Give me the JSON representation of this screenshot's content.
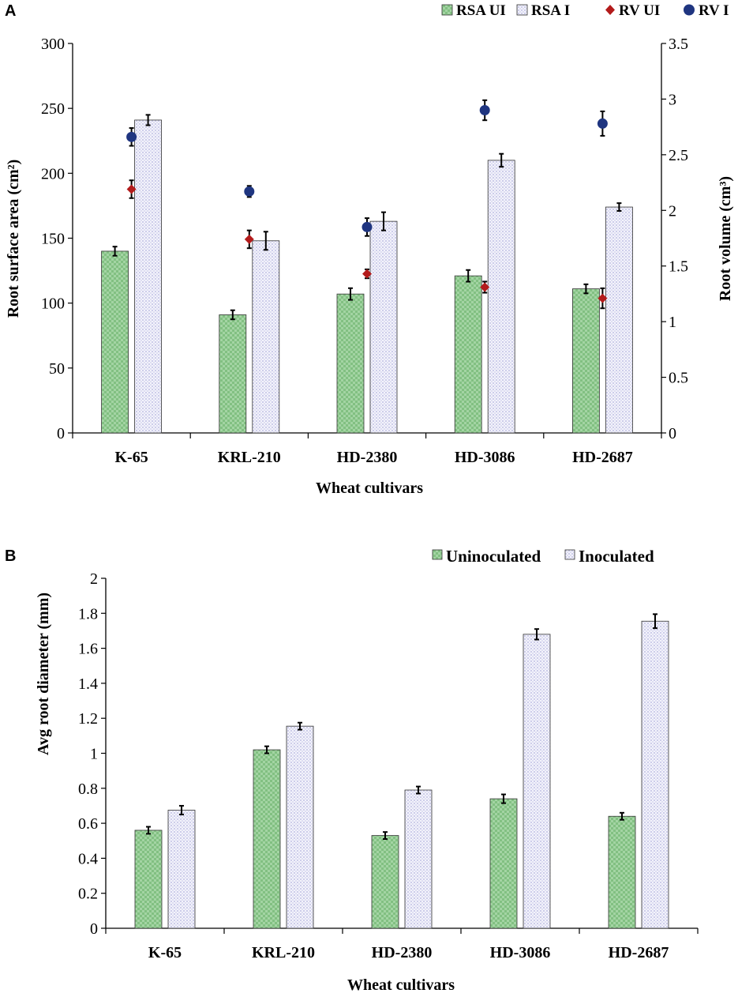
{
  "chart_data": [
    {
      "panel_label": "A",
      "type": "bar",
      "title": "",
      "xlabel": "Wheat cultivars",
      "ylabel": "Root surface area (cm²)",
      "y2label": "Root volume (cm³)",
      "categories": [
        "K-65",
        "KRL-210",
        "HD-2380",
        "HD-3086",
        "HD-2687"
      ],
      "ylim": [
        0,
        300
      ],
      "yticks": [
        "0",
        "50",
        "100",
        "150",
        "200",
        "250",
        "300"
      ],
      "y2lim": [
        0,
        3.5
      ],
      "y2ticks": [
        "0",
        "0.5",
        "1",
        "1.5",
        "2",
        "2.5",
        "3",
        "3.5"
      ],
      "legend_position": "top-right",
      "series": [
        {
          "name": "RSA UI",
          "kind": "bar",
          "axis": "left",
          "color": "#8cc68c",
          "values": [
            140,
            91,
            107,
            121,
            111
          ],
          "errors": [
            3.5,
            3.5,
            4.5,
            4.5,
            3.5
          ]
        },
        {
          "name": "RSA I",
          "kind": "bar",
          "axis": "left",
          "color": "#e4e4f4",
          "values": [
            241,
            148,
            163,
            210,
            174
          ],
          "errors": [
            4,
            7,
            7,
            5,
            3
          ]
        },
        {
          "name": "RV UI",
          "kind": "point",
          "marker": "diamond",
          "axis": "right",
          "color": "#b31b1b",
          "values": [
            2.19,
            1.74,
            1.43,
            1.31,
            1.21
          ],
          "errors": [
            0.08,
            0.08,
            0.04,
            0.05,
            0.09
          ]
        },
        {
          "name": "RV I",
          "kind": "point",
          "marker": "circle",
          "axis": "right",
          "color": "#1f3580",
          "values": [
            2.66,
            2.17,
            1.85,
            2.9,
            2.78
          ],
          "errors": [
            0.08,
            0.05,
            0.08,
            0.09,
            0.11
          ]
        }
      ]
    },
    {
      "panel_label": "B",
      "type": "bar",
      "title": "",
      "xlabel": "Wheat cultivars",
      "ylabel": "Avg root diameter (mm)",
      "categories": [
        "K-65",
        "KRL-210",
        "HD-2380",
        "HD-3086",
        "HD-2687"
      ],
      "ylim": [
        0,
        2
      ],
      "yticks": [
        "0",
        "0.2",
        "0.4",
        "0.6",
        "0.8",
        "1",
        "1.2",
        "1.4",
        "1.6",
        "1.8",
        "2"
      ],
      "legend_position": "top-right",
      "series": [
        {
          "name": "Uninoculated",
          "kind": "bar",
          "axis": "left",
          "color": "#8cc68c",
          "values": [
            0.56,
            1.02,
            0.53,
            0.74,
            0.64
          ],
          "errors": [
            0.02,
            0.02,
            0.02,
            0.025,
            0.02
          ]
        },
        {
          "name": "Inoculated",
          "kind": "bar",
          "axis": "left",
          "color": "#e4e4f4",
          "values": [
            0.675,
            1.155,
            0.79,
            1.68,
            1.755
          ],
          "errors": [
            0.025,
            0.02,
            0.02,
            0.03,
            0.04
          ]
        }
      ]
    }
  ]
}
